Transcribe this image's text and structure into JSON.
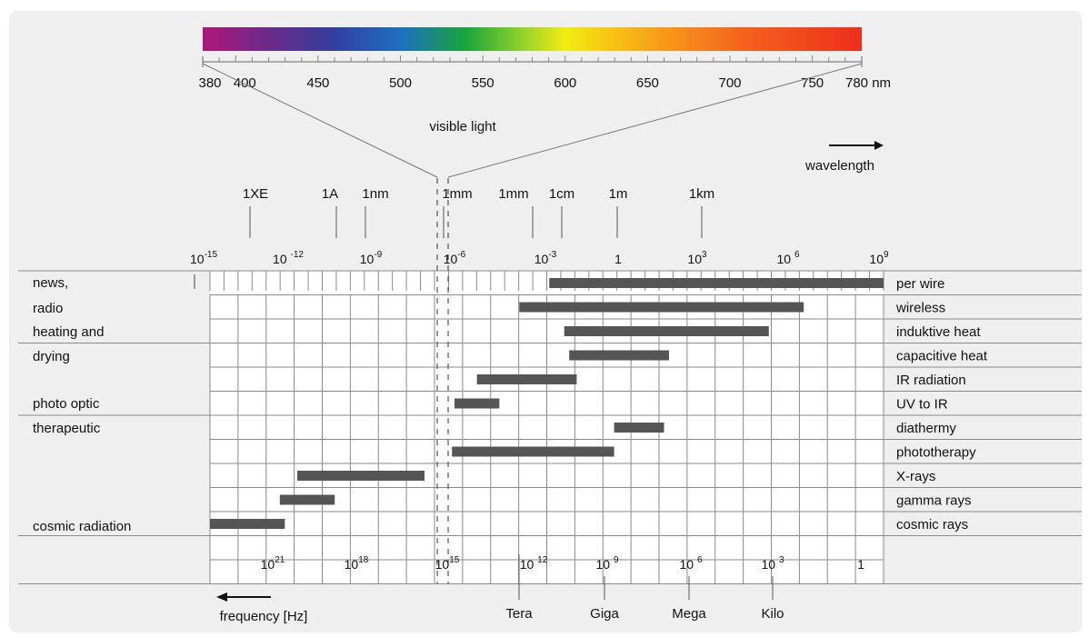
{
  "colors": {
    "panel": "#efefef",
    "grid_line": "#8a8a8a",
    "bar": "#555555",
    "text": "#111111"
  },
  "visible": {
    "title": "visible light",
    "ticks": [
      "380",
      "400",
      "450",
      "500",
      "550",
      "600",
      "650",
      "700",
      "750"
    ],
    "end_label": "780 nm"
  },
  "wavelength_label": "wavelength",
  "frequency_label": "frequency [Hz]",
  "wave_unit_labels": [
    "1XE",
    "1A",
    "1nm",
    "1mm",
    "1mm",
    "1cm",
    "1m",
    "1km"
  ],
  "wave_exponents": [
    {
      "base": "10",
      "exp": "-15"
    },
    {
      "base": "10 ",
      "exp": "-12"
    },
    {
      "base": "10",
      "exp": "-9"
    },
    {
      "base": "10",
      "exp": "-6"
    },
    {
      "base": "10",
      "exp": "-3"
    },
    {
      "base": "1",
      "exp": ""
    },
    {
      "base": "10",
      "exp": "3"
    },
    {
      "base": "10 ",
      "exp": "6"
    },
    {
      "base": "10",
      "exp": "9"
    }
  ],
  "freq_exponents": [
    {
      "base": "10",
      "exp": "21"
    },
    {
      "base": "10",
      "exp": "18"
    },
    {
      "base": "10",
      "exp": "15"
    },
    {
      "base": "10 ",
      "exp": "12"
    },
    {
      "base": "10 ",
      "exp": "9"
    },
    {
      "base": "10 ",
      "exp": "6"
    },
    {
      "base": "10 ",
      "exp": "3"
    },
    {
      "base": "1",
      "exp": ""
    }
  ],
  "freq_prefixes": [
    "Tera",
    "Giga",
    "Mega",
    "Kilo"
  ],
  "left_labels": [
    "news,",
    "radio",
    "heating and",
    "drying",
    "photo optic",
    "therapeutic",
    "cosmic radiation"
  ],
  "rows": [
    {
      "label": "per wire",
      "bar": [
        -3.4,
        10.0
      ]
    },
    {
      "label": "wireless",
      "bar": [
        -4.6,
        6.8
      ]
    },
    {
      "label": "induktive heat",
      "bar": [
        -2.8,
        5.4
      ]
    },
    {
      "label": "capacitive heat",
      "bar": [
        -2.6,
        1.4
      ]
    },
    {
      "label": "IR radiation",
      "bar": [
        -6.3,
        -2.3
      ]
    },
    {
      "label": "UV to IR",
      "bar": [
        -7.2,
        -5.4
      ]
    },
    {
      "label": "diathermy",
      "bar": [
        -0.8,
        1.2
      ]
    },
    {
      "label": "phototherapy",
      "bar": [
        -7.3,
        -0.8
      ]
    },
    {
      "label": "X-rays",
      "bar": [
        -13.5,
        -8.4
      ]
    },
    {
      "label": "gamma rays",
      "bar": [
        -14.2,
        -12.0
      ]
    },
    {
      "label": "cosmic rays",
      "bar": [
        -17.0,
        -14.0
      ]
    }
  ]
}
